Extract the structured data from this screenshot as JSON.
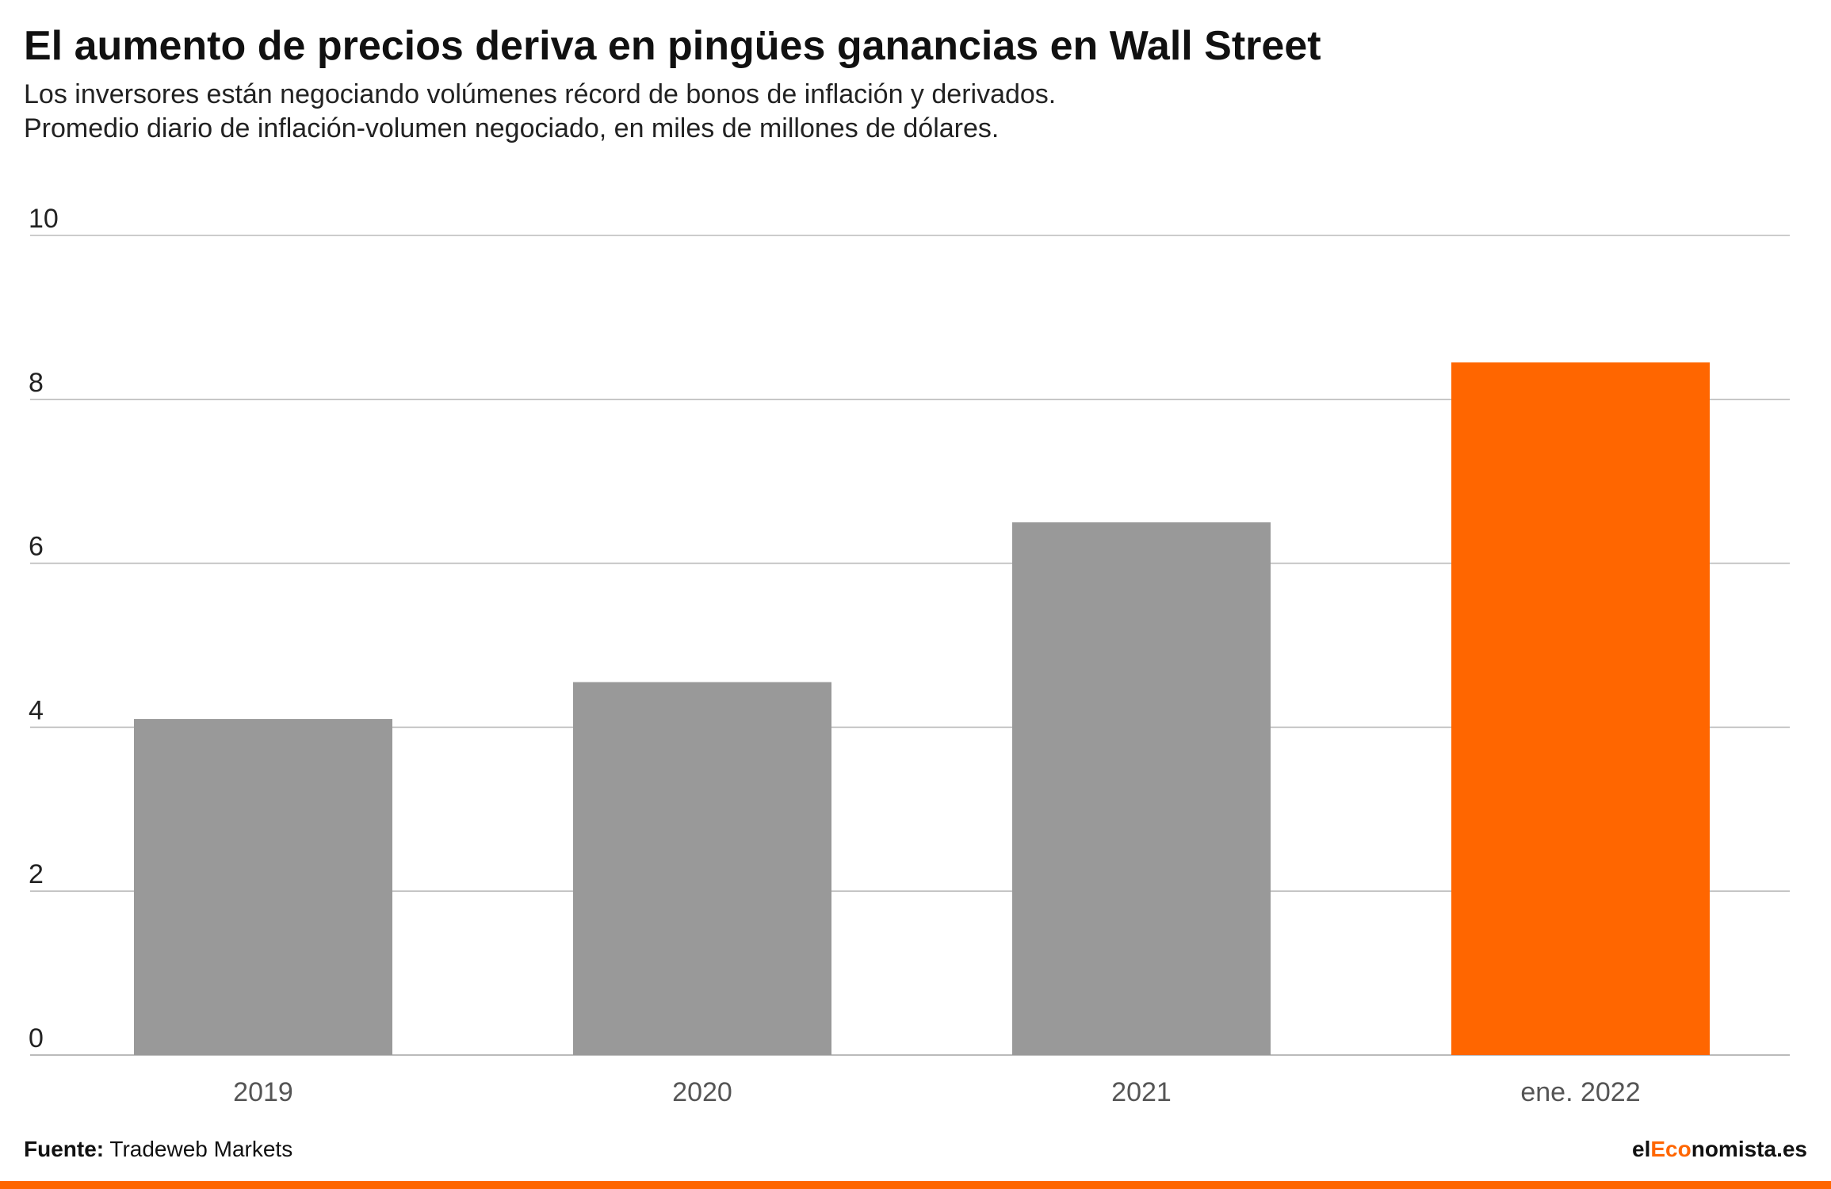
{
  "header": {
    "title": "El aumento de precios deriva en pingües ganancias en Wall Street",
    "subtitle_line1": "Los inversores están negociando volúmenes récord de bonos de inflación y derivados.",
    "subtitle_line2": "Promedio diario de inflación-volumen negociado, en miles de millones de dólares."
  },
  "footer": {
    "source_label": "Fuente:",
    "source_value": "Tradeweb Markets",
    "brand_prefix": "el",
    "brand_highlight": "Eco",
    "brand_suffix": "nomista.es"
  },
  "colors": {
    "bar_default": "#999999",
    "bar_highlight": "#ff6600",
    "gridline": "#bbbbbb",
    "axis_text": "#222222",
    "tick_label_x": "#555555",
    "brand_accent": "#ff6600"
  },
  "chart_data": {
    "type": "bar",
    "categories": [
      "2019",
      "2020",
      "2021",
      "ene. 2022"
    ],
    "values": [
      4.1,
      4.55,
      6.5,
      8.45
    ],
    "highlight": [
      "ene. 2022"
    ],
    "title": "El aumento de precios deriva en pingües ganancias en Wall Street",
    "xlabel": "",
    "ylabel": "",
    "ylim": [
      0,
      10
    ],
    "yticks": [
      0,
      2,
      4,
      6,
      8,
      10
    ],
    "ytick_labels": [
      "0",
      "2",
      "4",
      "6",
      "8",
      "10"
    ],
    "grid": true,
    "legend": "none"
  }
}
